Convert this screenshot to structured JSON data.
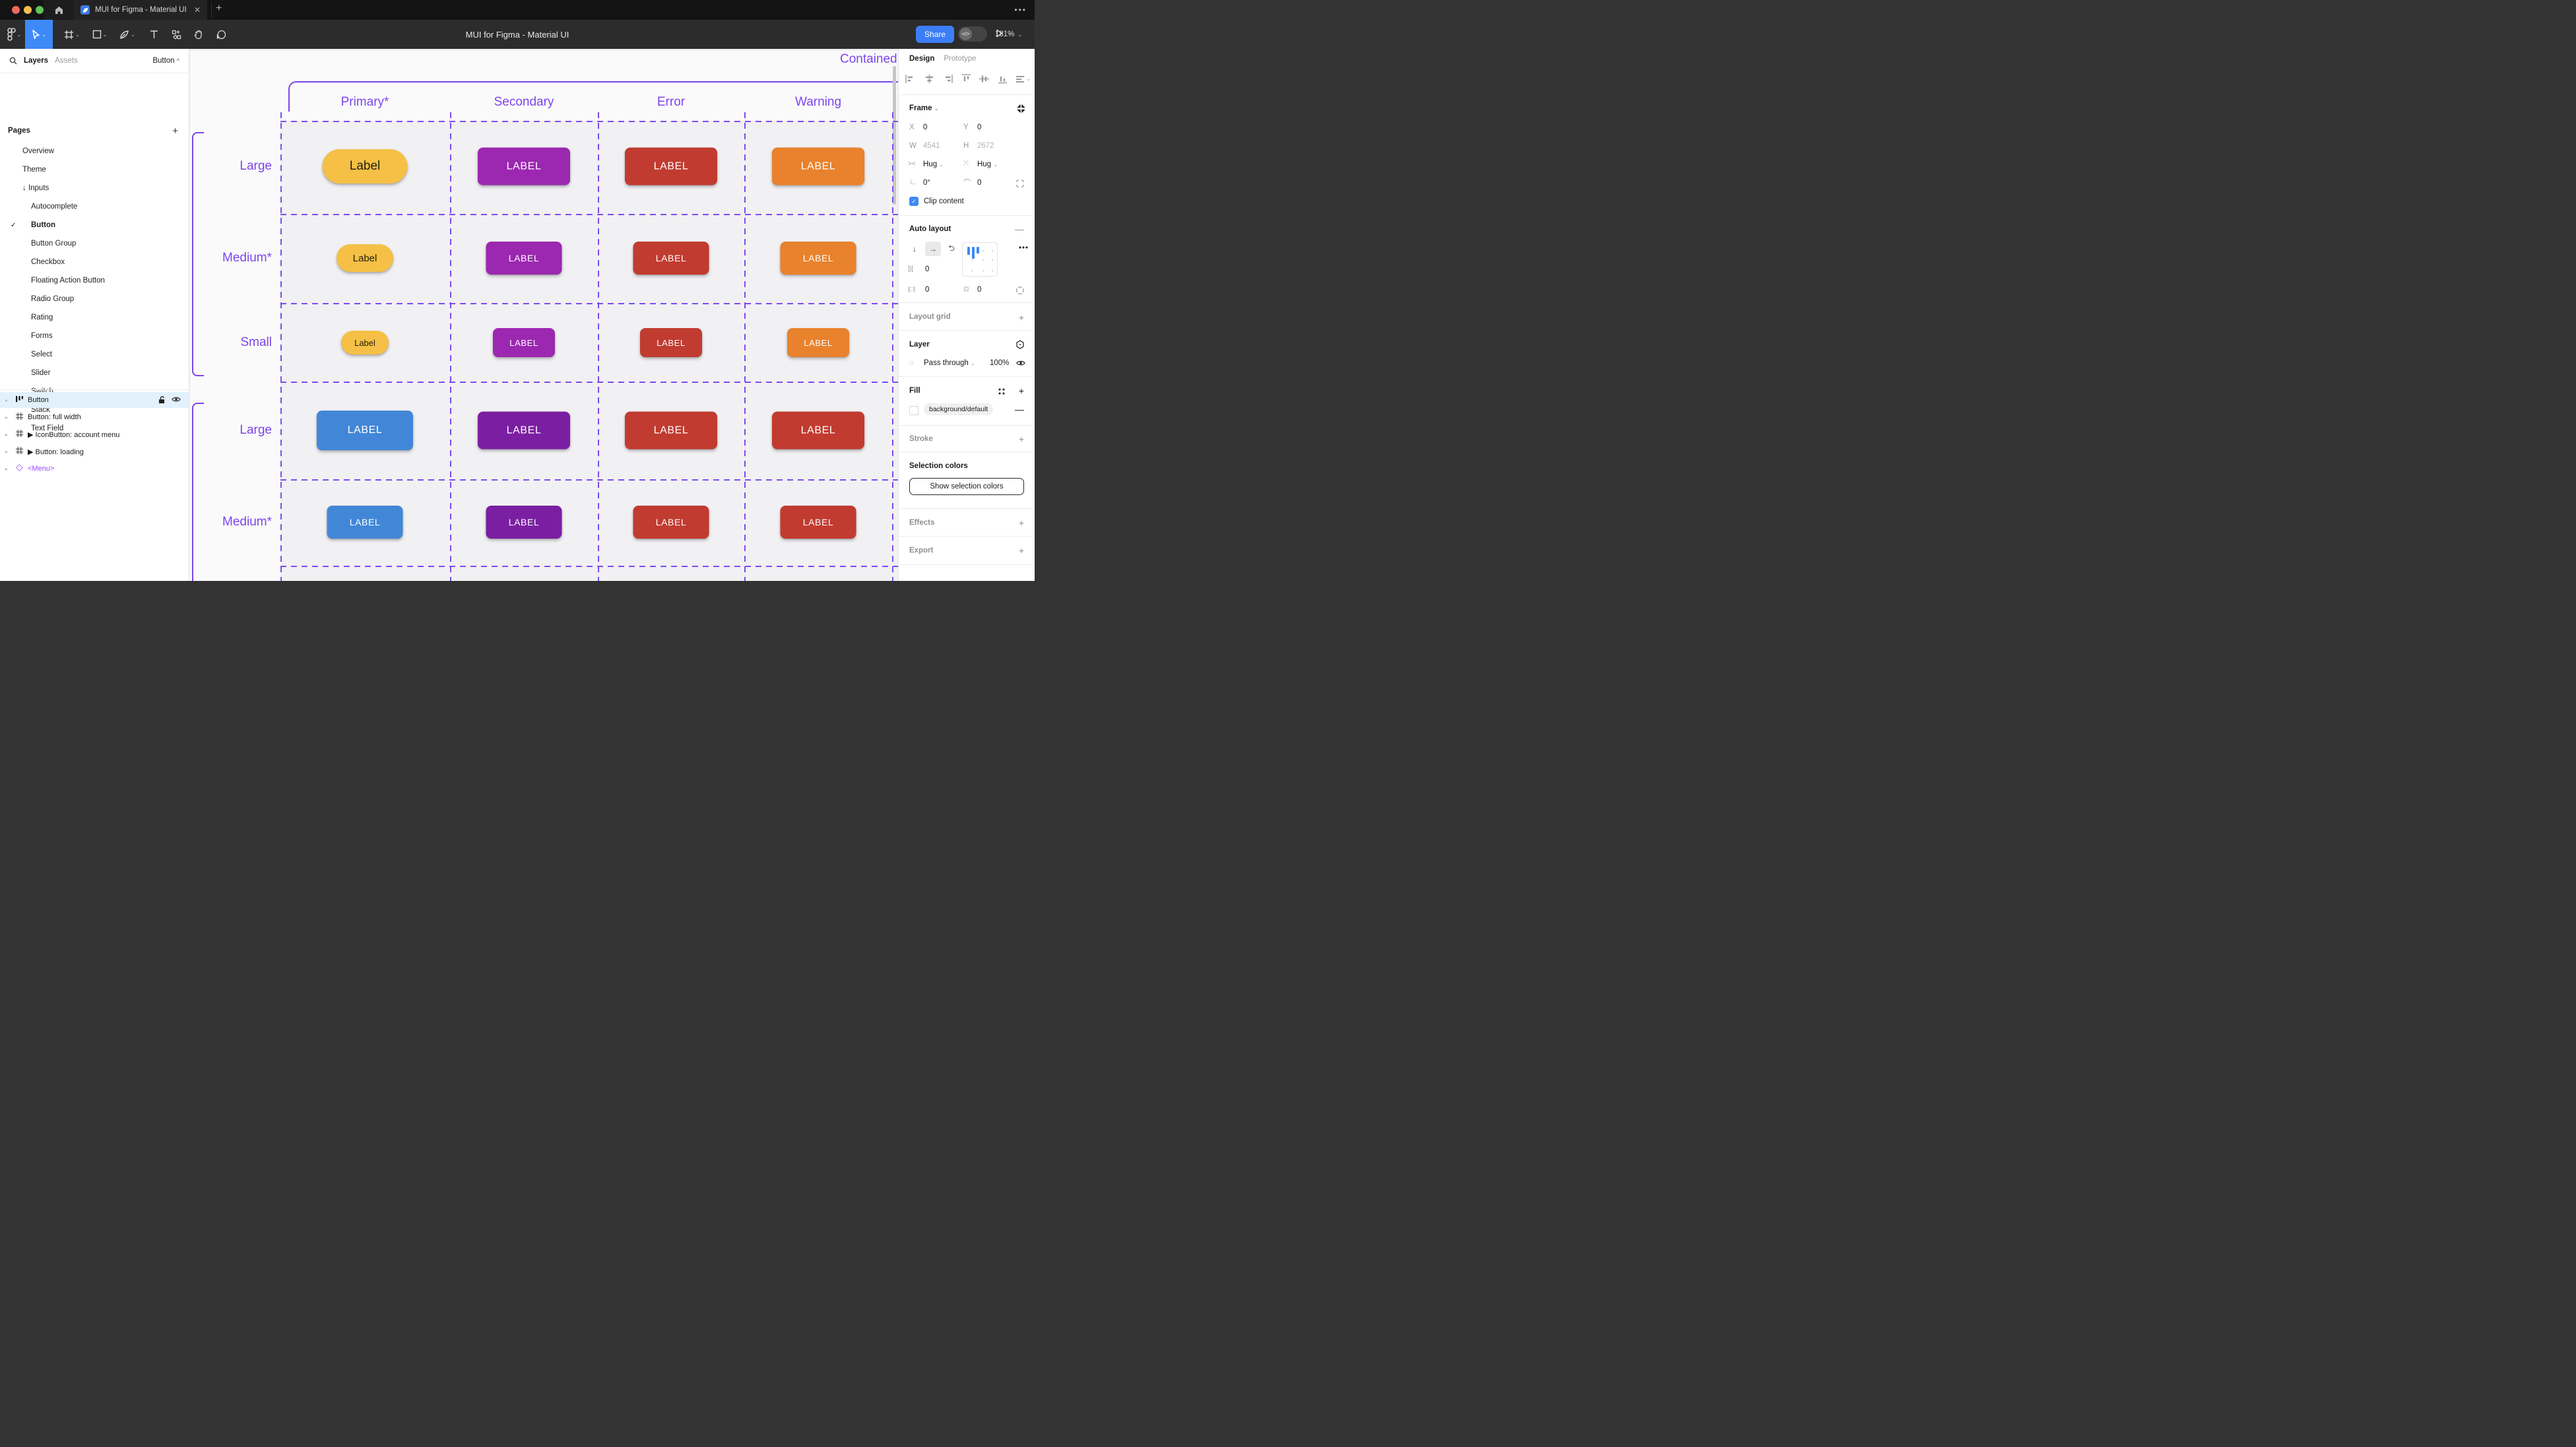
{
  "browser": {
    "tab_title": "MUI for Figma - Material UI",
    "close_glyph": "✕",
    "new_tab_glyph": "+",
    "menu_dots": "•••",
    "traffic_colors": [
      "#ec6a5e",
      "#f5bf4f",
      "#61c454"
    ]
  },
  "toolbar": {
    "doc_title": "MUI for Figma - Material UI",
    "share_label": "Share",
    "dev_toggle_glyph": "</>",
    "zoom_level": "181%"
  },
  "sidebar": {
    "tabs": [
      "Layers",
      "Assets"
    ],
    "page_selector": "Button",
    "pages_title": "Pages",
    "pages": [
      {
        "label": "Overview",
        "lvl": 1
      },
      {
        "label": "Theme",
        "lvl": 1
      },
      {
        "label": "Inputs",
        "lvl": 1,
        "arrow": "↓"
      },
      {
        "label": "Autocomplete",
        "lvl": 2
      },
      {
        "label": "Button",
        "lvl": 2,
        "checked": true,
        "bold": true
      },
      {
        "label": "Button Group",
        "lvl": 2
      },
      {
        "label": "Checkbox",
        "lvl": 2
      },
      {
        "label": "Floating Action Button",
        "lvl": 2
      },
      {
        "label": "Radio Group",
        "lvl": 2
      },
      {
        "label": "Rating",
        "lvl": 2
      },
      {
        "label": "Forms",
        "lvl": 2
      },
      {
        "label": "Select",
        "lvl": 2
      },
      {
        "label": "Slider",
        "lvl": 2
      },
      {
        "label": "Switch",
        "lvl": 2
      },
      {
        "label": "Stack",
        "lvl": 2
      },
      {
        "label": "Text Field",
        "lvl": 2
      }
    ],
    "layers": [
      {
        "label": "Button",
        "icon": "autolayout",
        "selected": true
      },
      {
        "label": "Button: full width",
        "icon": "frame"
      },
      {
        "label": "IconButton: account menu",
        "icon": "frame",
        "play": true
      },
      {
        "label": "Button: loading",
        "icon": "frame",
        "play": true
      },
      {
        "label": "<Menu>",
        "icon": "diamond",
        "purple": true
      }
    ]
  },
  "canvas": {
    "frame_title": "Contained",
    "columns": [
      "Primary*",
      "Secondary",
      "Error",
      "Warning"
    ],
    "groups": [
      {
        "rows": [
          {
            "label": "Large",
            "size": "large",
            "buttons": [
              {
                "text": "Label",
                "variant": "yellow",
                "pill": true
              },
              {
                "text": "LABEL",
                "variant": "purple"
              },
              {
                "text": "LABEL",
                "variant": "red"
              },
              {
                "text": "LABEL",
                "variant": "orange"
              }
            ]
          },
          {
            "label": "Medium*",
            "size": "medium",
            "buttons": [
              {
                "text": "Label",
                "variant": "yellow",
                "pill": true
              },
              {
                "text": "LABEL",
                "variant": "purple"
              },
              {
                "text": "LABEL",
                "variant": "red"
              },
              {
                "text": "LABEL",
                "variant": "orange"
              }
            ]
          },
          {
            "label": "Small",
            "size": "small",
            "buttons": [
              {
                "text": "Label",
                "variant": "yellow",
                "pill": true
              },
              {
                "text": "LABEL",
                "variant": "purple"
              },
              {
                "text": "LABEL",
                "variant": "red"
              },
              {
                "text": "LABEL",
                "variant": "orange"
              }
            ]
          }
        ]
      },
      {
        "rows": [
          {
            "label": "Large",
            "size": "large",
            "buttons": [
              {
                "text": "LABEL",
                "variant": "blue"
              },
              {
                "text": "LABEL",
                "variant": "deep_purple"
              },
              {
                "text": "LABEL",
                "variant": "red"
              },
              {
                "text": "LABEL",
                "variant": "red"
              }
            ]
          },
          {
            "label": "Medium*",
            "size": "medium",
            "buttons": [
              {
                "text": "LABEL",
                "variant": "blue"
              },
              {
                "text": "LABEL",
                "variant": "deep_purple"
              },
              {
                "text": "LABEL",
                "variant": "red"
              },
              {
                "text": "LABEL",
                "variant": "red"
              }
            ]
          }
        ]
      }
    ]
  },
  "colors": {
    "yellow": "#f5c045",
    "yellow_text": "#26200f",
    "purple": "#9c27b0",
    "deep_purple": "#7b1fa2",
    "red": "#c13b30",
    "orange": "#e8822d",
    "blue": "#4287d7",
    "canvas_purple": "#7c45ec",
    "accent_blue": "#3d8af7"
  },
  "inspector": {
    "tabs": [
      "Design",
      "Prototype"
    ],
    "frame": {
      "title": "Frame",
      "x_label": "X",
      "x": "0",
      "y_label": "Y",
      "y": "0",
      "w_label": "W",
      "w": "4541",
      "h_label": "H",
      "h": "2672",
      "hug_h": "Hug",
      "hug_v": "Hug",
      "rotation": "0°",
      "radius": "0",
      "clip_label": "Clip content"
    },
    "auto_layout": {
      "title": "Auto layout",
      "gap": "0",
      "pad_h": "0",
      "pad_v": "0"
    },
    "layout_grid_title": "Layout grid",
    "layer": {
      "title": "Layer",
      "blend": "Pass through",
      "opacity": "100%"
    },
    "fill": {
      "title": "Fill",
      "token": "background/default"
    },
    "stroke_title": "Stroke",
    "selection": {
      "title": "Selection colors",
      "button_label": "Show selection colors"
    },
    "effects_title": "Effects",
    "export_title": "Export"
  }
}
